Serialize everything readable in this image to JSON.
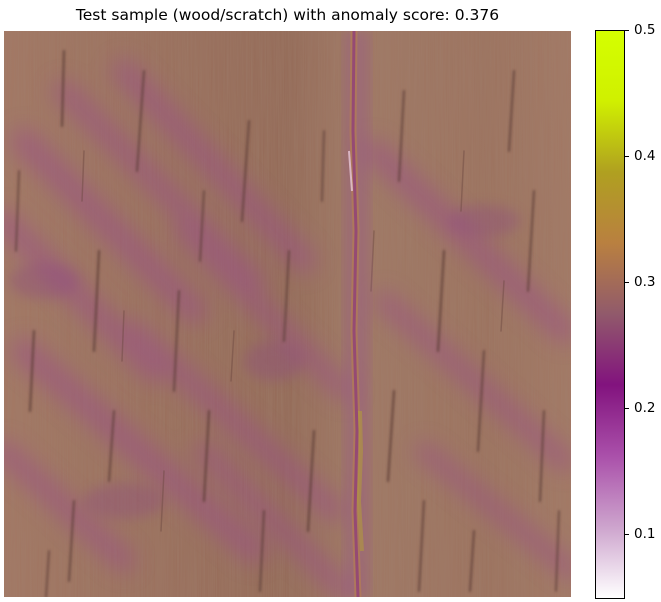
{
  "title": "Test sample (wood/scratch) with anomaly score: 0.376",
  "colorbar": {
    "min": 0.05,
    "max": 0.5,
    "ticks": [
      {
        "value": 0.5,
        "label": "0.5"
      },
      {
        "value": 0.4,
        "label": "0.4"
      },
      {
        "value": 0.3,
        "label": "0.3"
      },
      {
        "value": 0.2,
        "label": "0.2"
      },
      {
        "value": 0.1,
        "label": "0.1"
      }
    ],
    "gradient": [
      "#ffffff",
      "#cda4cd",
      "#aa50aa",
      "#82137e",
      "#915a6b",
      "#b98040",
      "#b0a020",
      "#d0f000",
      "#d4ff00"
    ]
  },
  "image": {
    "subject": "wood texture with a vertical scratch",
    "base_color": "#9a6f5b",
    "highlight_color": "#9a5d86"
  }
}
